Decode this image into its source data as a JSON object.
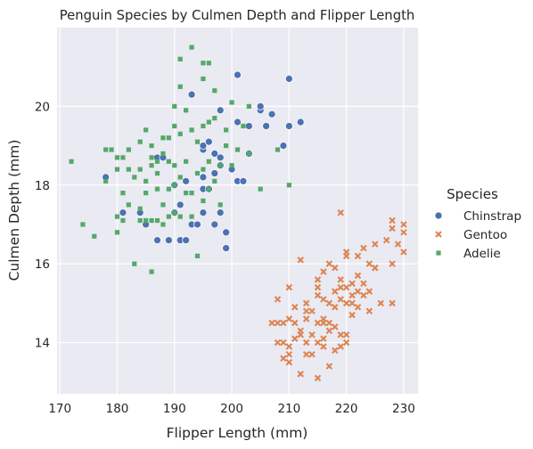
{
  "chart_data": {
    "type": "scatter",
    "title": "Penguin Species by Culmen Depth and Flipper Length",
    "xlabel": "Flipper Length (mm)",
    "ylabel": "Culmen Depth (mm)",
    "xlim": [
      169.5,
      232.5
    ],
    "ylim": [
      12.7,
      22.0
    ],
    "xticks": [
      170,
      180,
      190,
      200,
      210,
      220,
      230
    ],
    "yticks": [
      14,
      16,
      18,
      20
    ],
    "grid": true,
    "legend": {
      "title": "Species",
      "placement": "right"
    },
    "series": [
      {
        "name": "Chinstrap",
        "color": "#4c72b0",
        "marker": "circle",
        "points": [
          [
            178,
            18.2
          ],
          [
            181,
            17.3
          ],
          [
            184,
            17.3
          ],
          [
            185,
            17.0
          ],
          [
            187,
            16.6
          ],
          [
            187,
            18.7
          ],
          [
            188,
            18.7
          ],
          [
            189,
            16.6
          ],
          [
            190,
            17.3
          ],
          [
            190,
            18.0
          ],
          [
            191,
            16.6
          ],
          [
            191,
            17.5
          ],
          [
            192,
            16.6
          ],
          [
            192,
            18.1
          ],
          [
            193,
            17.0
          ],
          [
            193,
            20.3
          ],
          [
            194,
            17.0
          ],
          [
            195,
            17.3
          ],
          [
            195,
            17.9
          ],
          [
            195,
            18.2
          ],
          [
            195,
            18.9
          ],
          [
            195,
            19.0
          ],
          [
            196,
            17.9
          ],
          [
            196,
            19.1
          ],
          [
            197,
            17.0
          ],
          [
            197,
            18.3
          ],
          [
            197,
            18.8
          ],
          [
            198,
            17.3
          ],
          [
            198,
            18.5
          ],
          [
            198,
            18.7
          ],
          [
            198,
            19.9
          ],
          [
            199,
            16.4
          ],
          [
            199,
            16.8
          ],
          [
            200,
            18.4
          ],
          [
            201,
            18.1
          ],
          [
            201,
            19.6
          ],
          [
            201,
            20.8
          ],
          [
            202,
            18.1
          ],
          [
            203,
            18.8
          ],
          [
            203,
            19.5
          ],
          [
            205,
            19.9
          ],
          [
            205,
            20.0
          ],
          [
            206,
            19.5
          ],
          [
            207,
            19.8
          ],
          [
            210,
            19.5
          ],
          [
            210,
            20.7
          ],
          [
            212,
            19.6
          ],
          [
            209,
            19.0
          ]
        ]
      },
      {
        "name": "Gentoo",
        "color": "#dd8452",
        "marker": "x",
        "points": [
          [
            208,
            15.1
          ],
          [
            210,
            15.4
          ],
          [
            211,
            14.5
          ],
          [
            212,
            14.2
          ],
          [
            212,
            16.1
          ],
          [
            213,
            14.6
          ],
          [
            213,
            15.0
          ],
          [
            214,
            14.8
          ],
          [
            215,
            14.5
          ],
          [
            215,
            15.6
          ],
          [
            216,
            14.1
          ],
          [
            216,
            15.8
          ],
          [
            217,
            14.3
          ],
          [
            217,
            15.0
          ],
          [
            218,
            14.4
          ],
          [
            218,
            15.3
          ],
          [
            219,
            15.4
          ],
          [
            219,
            17.3
          ],
          [
            220,
            14.2
          ],
          [
            220,
            15.0
          ],
          [
            220,
            16.3
          ],
          [
            221,
            15.5
          ],
          [
            221,
            15.0
          ],
          [
            222,
            15.7
          ],
          [
            222,
            16.2
          ],
          [
            223,
            15.5
          ],
          [
            223,
            16.4
          ],
          [
            224,
            15.3
          ],
          [
            224,
            16.0
          ],
          [
            225,
            15.9
          ],
          [
            225,
            16.5
          ],
          [
            228,
            15.0
          ],
          [
            228,
            16.9
          ],
          [
            228,
            17.1
          ],
          [
            229,
            16.5
          ],
          [
            230,
            16.8
          ],
          [
            230,
            17.0
          ],
          [
            230,
            16.3
          ],
          [
            207,
            14.5
          ],
          [
            208,
            14.5
          ],
          [
            209,
            14.5
          ],
          [
            209,
            14.0
          ],
          [
            209,
            13.6
          ],
          [
            210,
            14.6
          ],
          [
            210,
            13.9
          ],
          [
            210,
            13.5
          ],
          [
            211,
            14.1
          ],
          [
            212,
            13.2
          ],
          [
            213,
            13.7
          ],
          [
            214,
            13.7
          ],
          [
            215,
            14.0
          ],
          [
            215,
            13.1
          ],
          [
            216,
            13.9
          ],
          [
            216,
            14.6
          ],
          [
            217,
            13.4
          ],
          [
            218,
            13.8
          ],
          [
            219,
            13.9
          ],
          [
            219,
            14.2
          ],
          [
            220,
            14.0
          ],
          [
            215,
            15.2
          ],
          [
            215,
            15.4
          ],
          [
            216,
            15.1
          ],
          [
            217,
            16.0
          ],
          [
            218,
            15.9
          ],
          [
            219,
            15.6
          ],
          [
            220,
            15.4
          ],
          [
            221,
            15.2
          ],
          [
            222,
            14.9
          ],
          [
            223,
            15.2
          ],
          [
            224,
            14.8
          ],
          [
            226,
            15.0
          ],
          [
            211,
            14.9
          ],
          [
            212,
            14.3
          ],
          [
            213,
            14.8
          ],
          [
            214,
            14.2
          ],
          [
            216,
            14.5
          ],
          [
            218,
            14.9
          ],
          [
            220,
            16.2
          ],
          [
            221,
            14.7
          ],
          [
            208,
            14.0
          ],
          [
            210,
            13.7
          ],
          [
            213,
            14.0
          ],
          [
            217,
            14.5
          ],
          [
            219,
            15.1
          ],
          [
            222,
            15.3
          ],
          [
            225,
            15.9
          ],
          [
            227,
            16.6
          ],
          [
            228,
            16.0
          ]
        ]
      },
      {
        "name": "Adelie",
        "color": "#55a868",
        "marker": "square",
        "points": [
          [
            172,
            18.6
          ],
          [
            174,
            17.0
          ],
          [
            176,
            16.7
          ],
          [
            178,
            18.1
          ],
          [
            178,
            18.9
          ],
          [
            179,
            18.9
          ],
          [
            180,
            16.8
          ],
          [
            180,
            17.2
          ],
          [
            180,
            18.4
          ],
          [
            180,
            18.7
          ],
          [
            181,
            17.8
          ],
          [
            181,
            18.7
          ],
          [
            182,
            18.4
          ],
          [
            182,
            18.9
          ],
          [
            183,
            16.0
          ],
          [
            184,
            17.1
          ],
          [
            184,
            17.4
          ],
          [
            184,
            18.4
          ],
          [
            184,
            19.1
          ],
          [
            185,
            17.1
          ],
          [
            185,
            17.8
          ],
          [
            185,
            19.4
          ],
          [
            186,
            15.8
          ],
          [
            186,
            17.1
          ],
          [
            186,
            18.5
          ],
          [
            186,
            18.7
          ],
          [
            186,
            19.0
          ],
          [
            187,
            17.1
          ],
          [
            187,
            18.3
          ],
          [
            187,
            18.6
          ],
          [
            188,
            17.5
          ],
          [
            188,
            18.8
          ],
          [
            188,
            19.2
          ],
          [
            189,
            17.2
          ],
          [
            189,
            17.9
          ],
          [
            189,
            19.2
          ],
          [
            190,
            17.3
          ],
          [
            190,
            18.0
          ],
          [
            190,
            18.5
          ],
          [
            190,
            19.5
          ],
          [
            190,
            20.0
          ],
          [
            191,
            17.2
          ],
          [
            191,
            18.2
          ],
          [
            191,
            19.3
          ],
          [
            191,
            20.5
          ],
          [
            191,
            21.2
          ],
          [
            192,
            17.8
          ],
          [
            192,
            18.6
          ],
          [
            192,
            19.9
          ],
          [
            193,
            17.2
          ],
          [
            193,
            17.8
          ],
          [
            193,
            19.4
          ],
          [
            193,
            21.5
          ],
          [
            194,
            16.2
          ],
          [
            194,
            18.3
          ],
          [
            194,
            19.1
          ],
          [
            195,
            17.6
          ],
          [
            195,
            18.4
          ],
          [
            195,
            19.5
          ],
          [
            195,
            20.7
          ],
          [
            195,
            21.1
          ],
          [
            196,
            17.9
          ],
          [
            196,
            18.6
          ],
          [
            196,
            19.6
          ],
          [
            196,
            21.1
          ],
          [
            197,
            18.1
          ],
          [
            197,
            19.7
          ],
          [
            197,
            20.4
          ],
          [
            198,
            17.5
          ],
          [
            198,
            18.5
          ],
          [
            199,
            19.0
          ],
          [
            199,
            19.4
          ],
          [
            200,
            18.5
          ],
          [
            200,
            20.1
          ],
          [
            201,
            18.9
          ],
          [
            202,
            19.5
          ],
          [
            203,
            18.8
          ],
          [
            203,
            20.0
          ],
          [
            205,
            17.9
          ],
          [
            208,
            18.9
          ],
          [
            210,
            18.0
          ],
          [
            189,
            18.6
          ],
          [
            188,
            17.0
          ],
          [
            187,
            17.9
          ],
          [
            185,
            18.1
          ],
          [
            183,
            18.2
          ],
          [
            182,
            17.5
          ],
          [
            181,
            17.1
          ]
        ]
      }
    ]
  }
}
